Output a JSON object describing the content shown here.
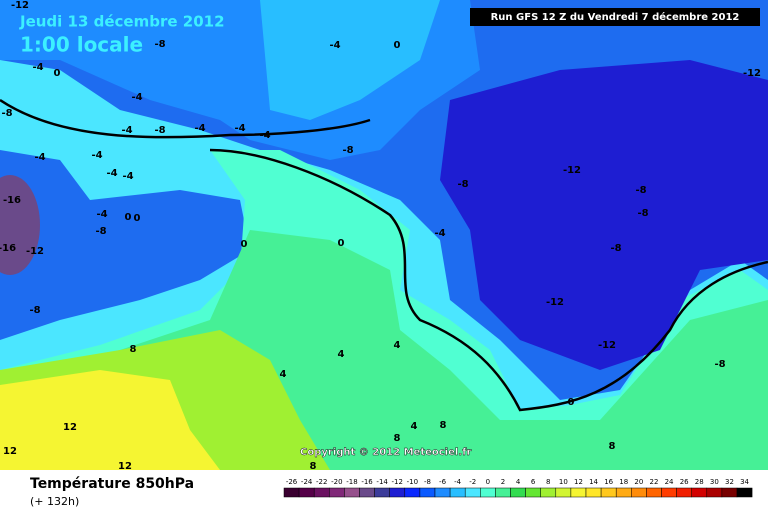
{
  "header": {
    "date": "Jeudi 13 décembre 2012",
    "time": "1:00 locale",
    "run": "Run GFS 12 Z du Vendredi 7 décembre 2012"
  },
  "copyright": "Copyright © 2012 Meteociel.fr",
  "footer": {
    "title": "Température 850hPa",
    "lead": "(+ 132h)"
  },
  "legend": {
    "values": [
      -26,
      -24,
      -22,
      -20,
      -18,
      -16,
      -14,
      -12,
      -10,
      -8,
      -6,
      -4,
      -2,
      0,
      2,
      4,
      6,
      8,
      10,
      12,
      14,
      16,
      18,
      20,
      22,
      24,
      26,
      28,
      30,
      32,
      34
    ],
    "colors": [
      "#3a0030",
      "#550048",
      "#6a1060",
      "#802878",
      "#96508c",
      "#6a4a8a",
      "#3c3c9a",
      "#1e1ed2",
      "#0a28ff",
      "#0a5aff",
      "#1e8cff",
      "#28beff",
      "#4be6ff",
      "#50ffd2",
      "#46f096",
      "#32dc50",
      "#64e632",
      "#a0f032",
      "#d2f532",
      "#f5f532",
      "#ffe628",
      "#ffc81e",
      "#ffaa14",
      "#ff8c0a",
      "#ff6400",
      "#ff3c00",
      "#f01e00",
      "#d20000",
      "#aa0000",
      "#780000",
      "#000000"
    ]
  },
  "contour_labels": [
    -12,
    -8,
    -4,
    0,
    -12,
    -4,
    0,
    -8,
    -4,
    -4,
    -8,
    -4,
    -4,
    -4,
    -8,
    -4,
    -4,
    -4,
    -4,
    -8,
    -12,
    -8,
    -8,
    -16,
    -4,
    0,
    0,
    -8,
    0,
    0,
    -4,
    -16,
    -12,
    -8,
    -12,
    -12,
    -8,
    8,
    4,
    4,
    4,
    -8,
    0,
    12,
    12,
    12,
    4,
    8,
    8,
    8,
    8
  ]
}
